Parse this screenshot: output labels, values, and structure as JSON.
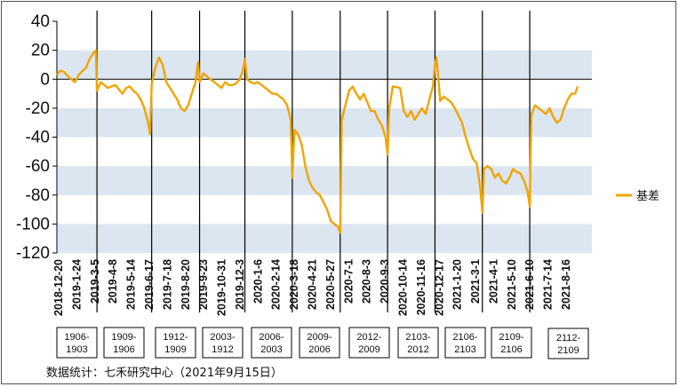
{
  "chart_data": {
    "type": "line",
    "title": "",
    "xlabel": "",
    "ylabel": "",
    "ylim": [
      -120,
      40
    ],
    "y_ticks": [
      "40",
      "20",
      "0",
      "-20",
      "-40",
      "-60",
      "-80",
      "-100",
      "-120"
    ],
    "x_ticks": [
      "2018-12-20",
      "2019-1-24",
      "2019-3-5",
      "2019-4-8",
      "2019-5-14",
      "2019-6-17",
      "2019-7-18",
      "2019-8-20",
      "2019-9-23",
      "2019-10-31",
      "2019-12-3",
      "2020-1-6",
      "2020-2-14",
      "2020-3-18",
      "2020-4-21",
      "2020-5-27",
      "2020-7-1",
      "2020-8-3",
      "2020-9-3",
      "2020-10-14",
      "2020-11-16",
      "2020-12-17",
      "2021-1-20",
      "2021-3-1",
      "2021-4-1",
      "2021-5-10",
      "2021-6-10",
      "2021-7-14",
      "2021-8-16"
    ],
    "legend_position": "right",
    "series": [
      {
        "name": "基差",
        "color": "#F0A500",
        "x": [
          "2018-12-20",
          "2018-12-27",
          "2019-1-3",
          "2019-1-10",
          "2019-1-17",
          "2019-1-24",
          "2019-1-31",
          "2019-2-14",
          "2019-2-21",
          "2019-2-28",
          "2019-3-5",
          "2019-3-7",
          "2019-3-14",
          "2019-3-21",
          "2019-3-28",
          "2019-4-4",
          "2019-4-11",
          "2019-4-18",
          "2019-4-25",
          "2019-5-2",
          "2019-5-9",
          "2019-5-16",
          "2019-5-23",
          "2019-5-30",
          "2019-6-6",
          "2019-6-13",
          "2019-6-17",
          "2019-6-20",
          "2019-6-27",
          "2019-7-4",
          "2019-7-11",
          "2019-7-18",
          "2019-7-25",
          "2019-8-1",
          "2019-8-8",
          "2019-8-15",
          "2019-8-22",
          "2019-8-29",
          "2019-9-5",
          "2019-9-12",
          "2019-9-17",
          "2019-9-20",
          "2019-9-27",
          "2019-10-4",
          "2019-10-11",
          "2019-10-18",
          "2019-10-25",
          "2019-11-1",
          "2019-11-8",
          "2019-11-15",
          "2019-11-22",
          "2019-11-29",
          "2019-12-6",
          "2019-12-12",
          "2019-12-16",
          "2019-12-20",
          "2019-12-27",
          "2020-1-3",
          "2020-1-10",
          "2020-1-17",
          "2020-1-24",
          "2020-2-7",
          "2020-2-14",
          "2020-2-21",
          "2020-2-28",
          "2020-3-6",
          "2020-3-13",
          "2020-3-16",
          "2020-3-20",
          "2020-3-27",
          "2020-4-3",
          "2020-4-10",
          "2020-4-17",
          "2020-4-24",
          "2020-5-1",
          "2020-5-8",
          "2020-5-15",
          "2020-5-22",
          "2020-5-29",
          "2020-6-5",
          "2020-6-12",
          "2020-6-16",
          "2020-6-19",
          "2020-6-26",
          "2020-7-3",
          "2020-7-10",
          "2020-7-17",
          "2020-7-24",
          "2020-7-31",
          "2020-8-7",
          "2020-8-14",
          "2020-8-21",
          "2020-8-28",
          "2020-9-4",
          "2020-9-11",
          "2020-9-15",
          "2020-9-18",
          "2020-9-25",
          "2020-10-9",
          "2020-10-16",
          "2020-10-23",
          "2020-10-30",
          "2020-11-6",
          "2020-11-13",
          "2020-11-20",
          "2020-11-27",
          "2020-12-4",
          "2020-12-11",
          "2020-12-15",
          "2020-12-18",
          "2020-12-25",
          "2021-1-1",
          "2021-1-8",
          "2021-1-15",
          "2021-1-22",
          "2021-1-29",
          "2021-2-5",
          "2021-2-12",
          "2021-2-19",
          "2021-2-26",
          "2021-3-5",
          "2021-3-12",
          "2021-3-16",
          "2021-3-19",
          "2021-3-26",
          "2021-4-2",
          "2021-4-9",
          "2021-4-16",
          "2021-4-23",
          "2021-4-30",
          "2021-5-7",
          "2021-5-14",
          "2021-5-21",
          "2021-5-28",
          "2021-6-4",
          "2021-6-11",
          "2021-6-15",
          "2021-6-18",
          "2021-6-25",
          "2021-7-2",
          "2021-7-9",
          "2021-7-16",
          "2021-7-23",
          "2021-7-30",
          "2021-8-6",
          "2021-8-13",
          "2021-8-20",
          "2021-8-27",
          "2021-9-3",
          "2021-9-10",
          "2021-9-15"
        ],
        "values": [
          3,
          6,
          5,
          2,
          0,
          -2,
          3,
          8,
          14,
          18,
          20,
          -8,
          -2,
          -4,
          -6,
          -5,
          -4,
          -7,
          -10,
          -6,
          -5,
          -8,
          -10,
          -14,
          -20,
          -30,
          -38,
          -3,
          8,
          15,
          10,
          -2,
          -6,
          -10,
          -14,
          -20,
          -22,
          -18,
          -10,
          -2,
          12,
          -2,
          4,
          2,
          0,
          -2,
          -4,
          -6,
          -2,
          -4,
          -4,
          -3,
          0,
          6,
          14,
          0,
          -2,
          -3,
          -2,
          -4,
          -6,
          -10,
          -10,
          -12,
          -14,
          -18,
          -28,
          -68,
          -35,
          -38,
          -45,
          -60,
          -70,
          -75,
          -78,
          -80,
          -85,
          -90,
          -98,
          -100,
          -102,
          -106,
          -28,
          -18,
          -8,
          -5,
          -10,
          -14,
          -10,
          -16,
          -22,
          -22,
          -28,
          -32,
          -40,
          -52,
          -20,
          -5,
          -6,
          -22,
          -26,
          -22,
          -28,
          -24,
          -20,
          -24,
          -14,
          -5,
          10,
          15,
          -15,
          -12,
          -14,
          -16,
          -20,
          -25,
          -30,
          -40,
          -48,
          -55,
          -58,
          -75,
          -92,
          -62,
          -60,
          -62,
          -68,
          -65,
          -70,
          -72,
          -68,
          -62,
          -64,
          -65,
          -70,
          -78,
          -88,
          -25,
          -18,
          -20,
          -22,
          -24,
          -20,
          -26,
          -30,
          -28,
          -20,
          -14,
          -10,
          -10,
          -5
        ]
      }
    ],
    "contract_boxes": [
      [
        "1906-",
        "1903"
      ],
      [
        "1909-",
        "1906"
      ],
      [
        "1912-",
        "1909"
      ],
      [
        "2003-",
        "1912"
      ],
      [
        "2006-",
        "2003"
      ],
      [
        "2009-",
        "2006"
      ],
      [
        "2012-",
        "2009"
      ],
      [
        "2103-",
        "2012"
      ],
      [
        "2106-",
        "2103"
      ],
      [
        "2109-",
        "2106"
      ],
      [
        "2112-",
        "2109"
      ]
    ]
  },
  "source_note": "数据统计：七禾研究中心（2021年9月15日）"
}
